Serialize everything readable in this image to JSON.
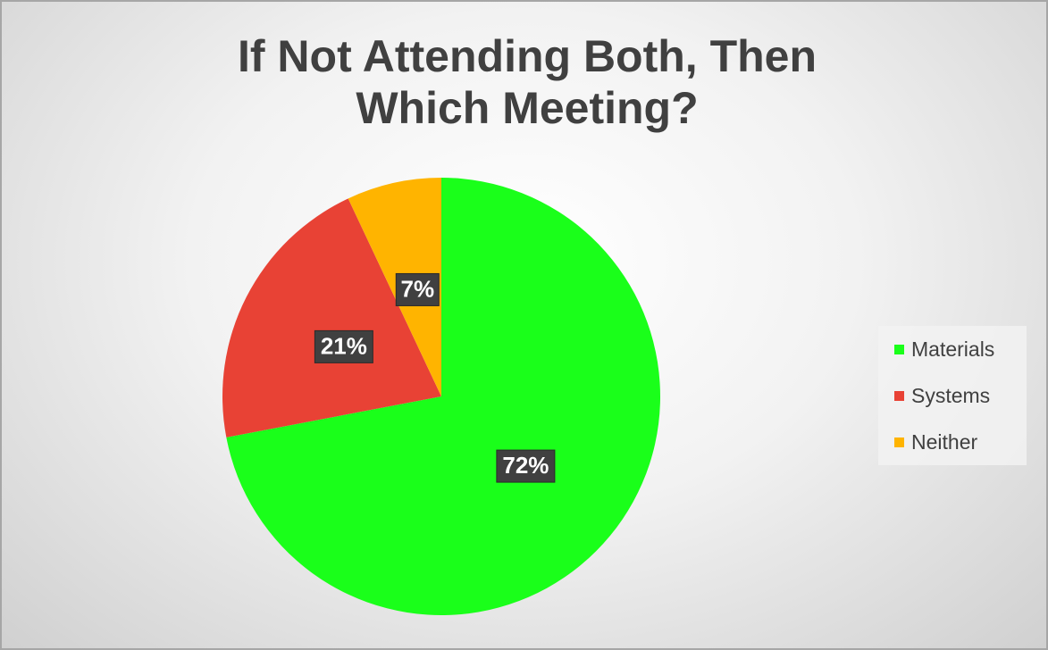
{
  "chart_data": {
    "type": "pie",
    "title": "If Not Attending Both, Then Which Meeting?",
    "categories": [
      "Materials",
      "Systems",
      "Neither"
    ],
    "values": [
      72,
      21,
      7
    ],
    "value_labels": [
      "72%",
      "21%",
      "7%"
    ],
    "colors": [
      "#1aff1a",
      "#e84235",
      "#ffb400"
    ],
    "legend": "right"
  }
}
